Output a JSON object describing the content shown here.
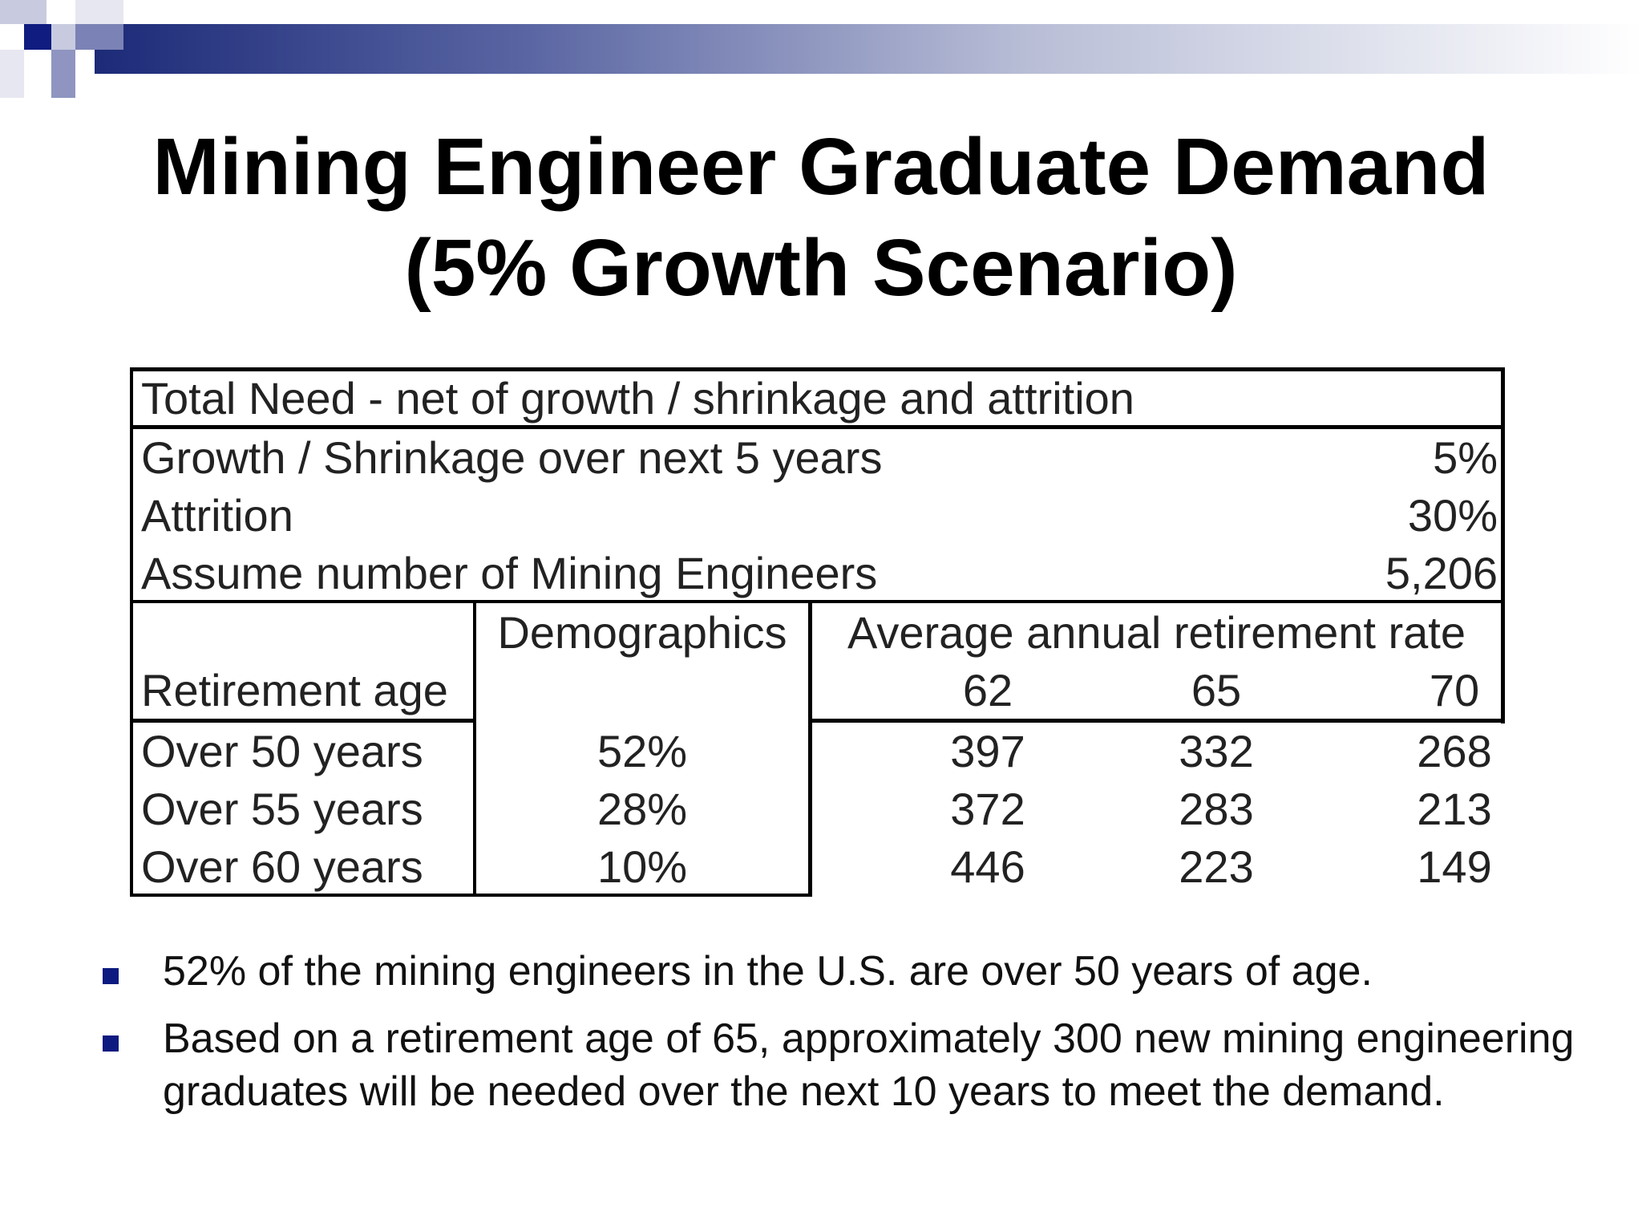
{
  "slide": {
    "title_line1": "Mining Engineer Graduate Demand",
    "title_line2": "(5% Growth Scenario)"
  },
  "table": {
    "header": "Total Need - net of growth / shrinkage and attrition",
    "params": [
      {
        "label": "Growth / Shrinkage over next 5 years",
        "value": "5%"
      },
      {
        "label": "Attrition",
        "value": "30%"
      },
      {
        "label": "Assume number of Mining Engineers",
        "value": "5,206"
      }
    ],
    "col_demographics": "Demographics",
    "col_rate": "Average annual retirement rate",
    "col_retirement_age": "Retirement age",
    "ages": [
      "62",
      "65",
      "70"
    ],
    "rows": [
      {
        "label": "Over 50 years",
        "demo": "52%",
        "v62": "397",
        "v65": "332",
        "v70": "268"
      },
      {
        "label": "Over 55 years",
        "demo": "28%",
        "v62": "372",
        "v65": "283",
        "v70": "213"
      },
      {
        "label": "Over 60 years",
        "demo": "10%",
        "v62": "446",
        "v65": "223",
        "v70": "149"
      }
    ]
  },
  "bullets": [
    "52% of the mining engineers in the U.S. are over 50 years of age.",
    "Based on a retirement age of 65, approximately 300 new mining engineering graduates will be needed over the next 10 years to meet the demand."
  ],
  "colors": {
    "accent": "#1c2a78",
    "bullet": "#0d1a80"
  }
}
